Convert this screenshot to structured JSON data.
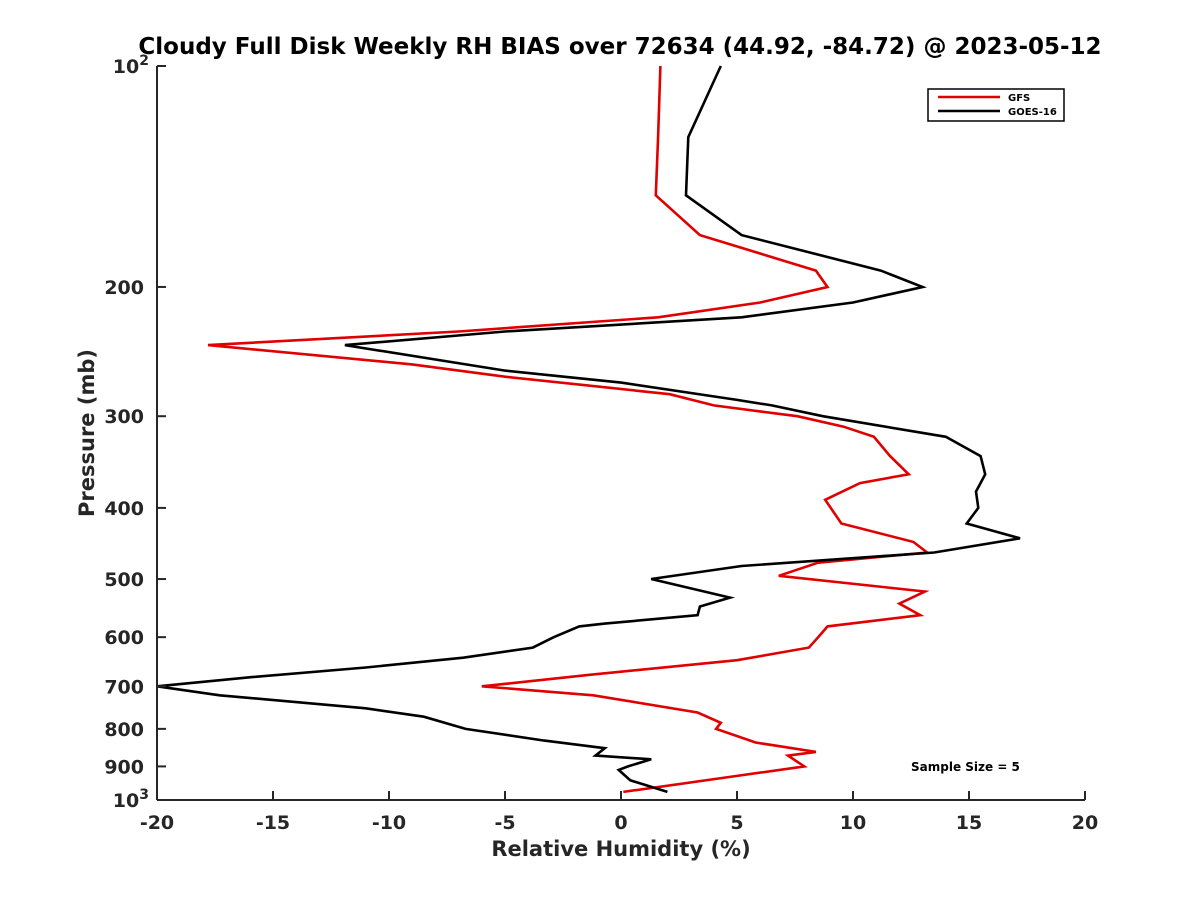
{
  "chart_data": {
    "type": "line",
    "title": "Cloudy Full Disk Weekly RH BIAS over 72634 (44.92, -84.72) @ 2023-05-12",
    "xlabel": "Relative Humidity (%)",
    "ylabel": "Pressure (mb)",
    "xlim": [
      -20,
      20
    ],
    "ylim": [
      100,
      1000
    ],
    "y_scale": "log",
    "y_reversed": true,
    "x_ticks": [
      -20,
      -15,
      -10,
      -5,
      0,
      5,
      10,
      15,
      20
    ],
    "y_ticks": [
      200,
      300,
      400,
      500,
      600,
      700,
      800,
      900
    ],
    "y_ticks_power_base": "10",
    "y_ticks_power": [
      {
        "value": 100,
        "exp": "2"
      },
      {
        "value": 1000,
        "exp": "3"
      }
    ],
    "legend_position": "top-right",
    "annotation": "Sample Size = 5",
    "grid": false,
    "series": [
      {
        "name": "GFS",
        "color": "#e00000",
        "points": [
          [
            1.7,
            100
          ],
          [
            1.6,
            125
          ],
          [
            1.5,
            150
          ],
          [
            3.4,
            170
          ],
          [
            8.4,
            190
          ],
          [
            8.9,
            200
          ],
          [
            6.0,
            210
          ],
          [
            1.6,
            220
          ],
          [
            -7.0,
            230
          ],
          [
            -17.8,
            240
          ],
          [
            -9.0,
            255
          ],
          [
            -5.0,
            265
          ],
          [
            2.1,
            280
          ],
          [
            4.0,
            290
          ],
          [
            7.6,
            300
          ],
          [
            9.6,
            310
          ],
          [
            10.9,
            320
          ],
          [
            11.6,
            340
          ],
          [
            12.4,
            360
          ],
          [
            10.3,
            370
          ],
          [
            8.8,
            390
          ],
          [
            9.5,
            420
          ],
          [
            12.6,
            445
          ],
          [
            13.2,
            460
          ],
          [
            8.5,
            475
          ],
          [
            6.8,
            495
          ],
          [
            13.1,
            520
          ],
          [
            12.0,
            540
          ],
          [
            12.9,
            560
          ],
          [
            8.9,
            580
          ],
          [
            8.5,
            600
          ],
          [
            8.1,
            620
          ],
          [
            5.0,
            645
          ],
          [
            -1.3,
            675
          ],
          [
            -6.0,
            700
          ],
          [
            -1.2,
            720
          ],
          [
            3.3,
            760
          ],
          [
            4.3,
            785
          ],
          [
            4.1,
            800
          ],
          [
            5.8,
            835
          ],
          [
            8.4,
            860
          ],
          [
            7.2,
            870
          ],
          [
            7.9,
            900
          ],
          [
            4.7,
            930
          ],
          [
            0.1,
            975
          ]
        ]
      },
      {
        "name": "GOES-16",
        "color": "#000000",
        "points": [
          [
            4.3,
            100
          ],
          [
            2.9,
            125
          ],
          [
            2.8,
            150
          ],
          [
            5.2,
            170
          ],
          [
            11.2,
            190
          ],
          [
            13.0,
            200
          ],
          [
            10.0,
            210
          ],
          [
            5.2,
            220
          ],
          [
            -5.0,
            230
          ],
          [
            -11.9,
            240
          ],
          [
            -5.0,
            260
          ],
          [
            0.0,
            270
          ],
          [
            5.0,
            285
          ],
          [
            6.5,
            290
          ],
          [
            8.7,
            300
          ],
          [
            14.0,
            320
          ],
          [
            15.5,
            340
          ],
          [
            15.7,
            360
          ],
          [
            15.3,
            380
          ],
          [
            15.4,
            400
          ],
          [
            14.9,
            420
          ],
          [
            17.2,
            440
          ],
          [
            13.5,
            460
          ],
          [
            5.2,
            480
          ],
          [
            1.3,
            500
          ],
          [
            4.7,
            530
          ],
          [
            3.4,
            545
          ],
          [
            3.3,
            560
          ],
          [
            -0.7,
            575
          ],
          [
            -1.8,
            580
          ],
          [
            -2.9,
            600
          ],
          [
            -3.8,
            620
          ],
          [
            -6.8,
            640
          ],
          [
            -11.0,
            660
          ],
          [
            -15.9,
            680
          ],
          [
            -20.0,
            700
          ],
          [
            -17.3,
            720
          ],
          [
            -11.0,
            750
          ],
          [
            -8.5,
            770
          ],
          [
            -6.7,
            800
          ],
          [
            -3.3,
            830
          ],
          [
            -0.7,
            850
          ],
          [
            -1.1,
            870
          ],
          [
            1.3,
            880
          ],
          [
            0.3,
            900
          ],
          [
            -0.1,
            910
          ],
          [
            0.4,
            940
          ],
          [
            2.0,
            975
          ]
        ]
      }
    ]
  }
}
